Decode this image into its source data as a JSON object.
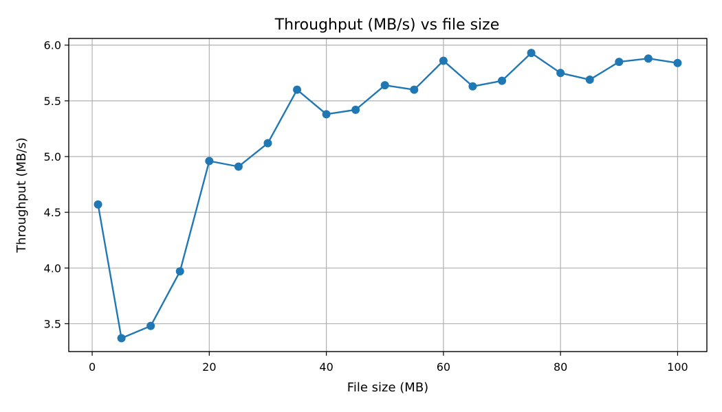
{
  "chart_data": {
    "type": "line",
    "title": "Throughput (MB/s) vs file size",
    "xlabel": "File size (MB)",
    "ylabel": "Throughput (MB/s)",
    "xlim": [
      -4,
      105
    ],
    "ylim": [
      3.25,
      6.06
    ],
    "xticks": [
      0,
      20,
      40,
      60,
      80,
      100
    ],
    "yticks": [
      3.5,
      4.0,
      4.5,
      5.0,
      5.5,
      6.0
    ],
    "xtick_labels": [
      "0",
      "20",
      "40",
      "60",
      "80",
      "100"
    ],
    "ytick_labels": [
      "3.5",
      "4.0",
      "4.5",
      "5.0",
      "5.5",
      "6.0"
    ],
    "grid": true,
    "legend": "none",
    "series": [
      {
        "color": "#1f77b4",
        "marker": "circle",
        "x": [
          1,
          5,
          10,
          15,
          20,
          25,
          30,
          35,
          40,
          45,
          50,
          55,
          60,
          65,
          70,
          75,
          80,
          85,
          90,
          95,
          100
        ],
        "y": [
          4.57,
          3.37,
          3.48,
          3.97,
          4.96,
          4.91,
          5.12,
          5.6,
          5.38,
          5.42,
          5.64,
          5.6,
          5.86,
          5.63,
          5.68,
          5.93,
          5.75,
          5.69,
          5.85,
          5.88,
          5.84
        ]
      }
    ]
  }
}
